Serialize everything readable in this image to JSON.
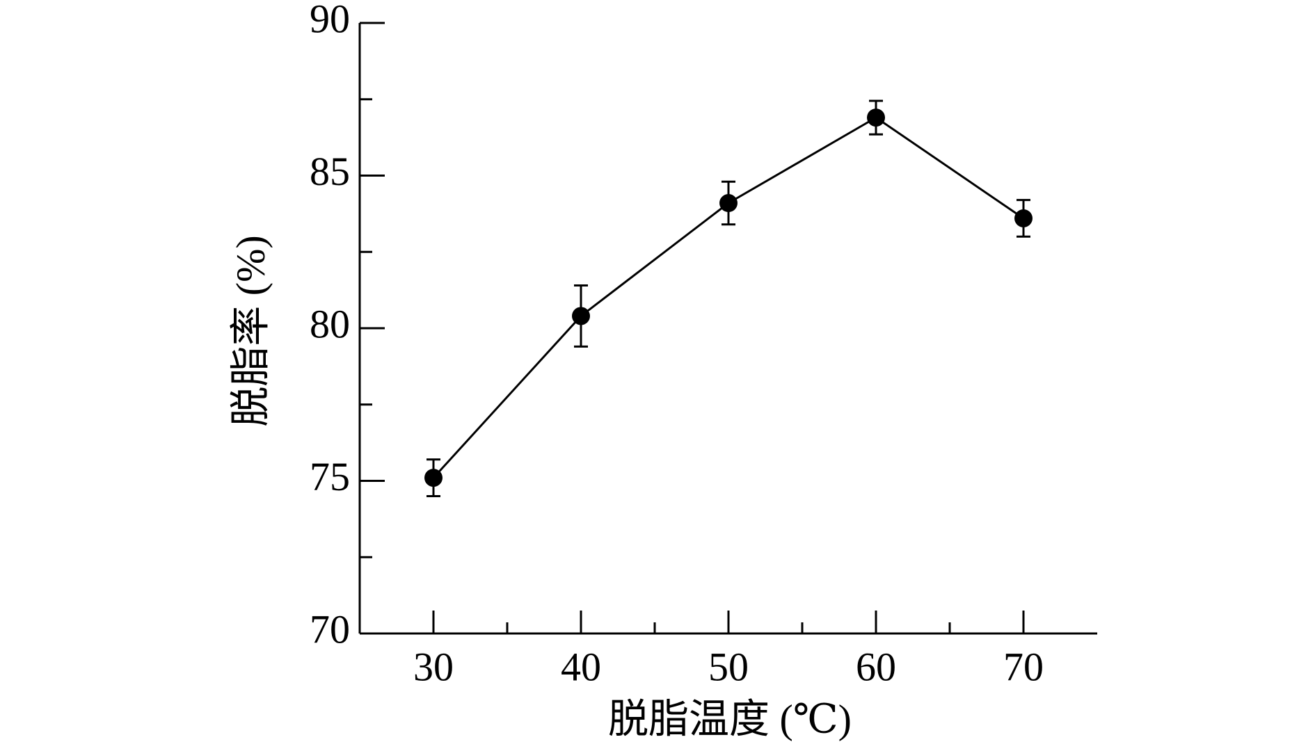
{
  "chart_data": {
    "type": "line",
    "x_label": "脱脂温度 (℃)",
    "y_label": "脱脂率 (%)",
    "x": [
      30,
      40,
      50,
      60,
      70
    ],
    "series": [
      {
        "color": "#000000",
        "values": [
          75.1,
          80.4,
          84.1,
          86.9,
          83.6
        ],
        "errors": [
          0.6,
          1.0,
          0.7,
          0.55,
          0.6
        ]
      }
    ],
    "xlim": [
      25,
      75
    ],
    "xticks": [
      30,
      40,
      50,
      60,
      70
    ],
    "xticks_minor": [
      35,
      45,
      55,
      65
    ],
    "ylim": [
      70,
      90
    ],
    "yticks": [
      70,
      75,
      80,
      85,
      90
    ],
    "yticks_minor": [
      72.5,
      77.5,
      82.5,
      87.5
    ],
    "grid": false
  }
}
